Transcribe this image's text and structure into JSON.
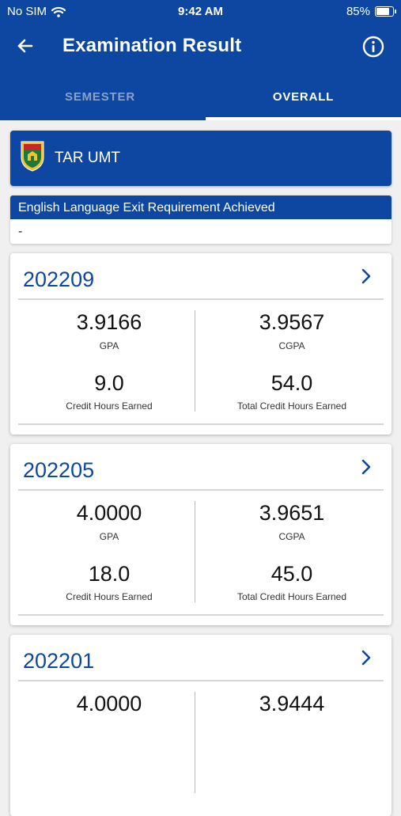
{
  "status_bar": {
    "carrier": "No SIM",
    "time": "9:42 AM",
    "battery": "85%"
  },
  "header": {
    "title": "Examination Result"
  },
  "tabs": [
    {
      "label": "SEMESTER"
    },
    {
      "label": "OVERALL"
    }
  ],
  "institution": {
    "name": "TAR UMT"
  },
  "english_requirement": {
    "title": "English Language Exit Requirement Achieved",
    "value": "-"
  },
  "labels": {
    "gpa": "GPA",
    "cgpa": "CGPA",
    "credit": "Credit Hours Earned",
    "total_credit": "Total Credit Hours Earned"
  },
  "semesters": [
    {
      "code": "202209",
      "gpa": "3.9166",
      "cgpa": "3.9567",
      "credit_hours": "9.0",
      "total_credit_hours": "54.0"
    },
    {
      "code": "202205",
      "gpa": "4.0000",
      "cgpa": "3.9651",
      "credit_hours": "18.0",
      "total_credit_hours": "45.0"
    },
    {
      "code": "202201",
      "gpa": "4.0000",
      "cgpa": "3.9444"
    }
  ],
  "colors": {
    "primary": "#0d47a1",
    "background": "#f0f0f0"
  }
}
